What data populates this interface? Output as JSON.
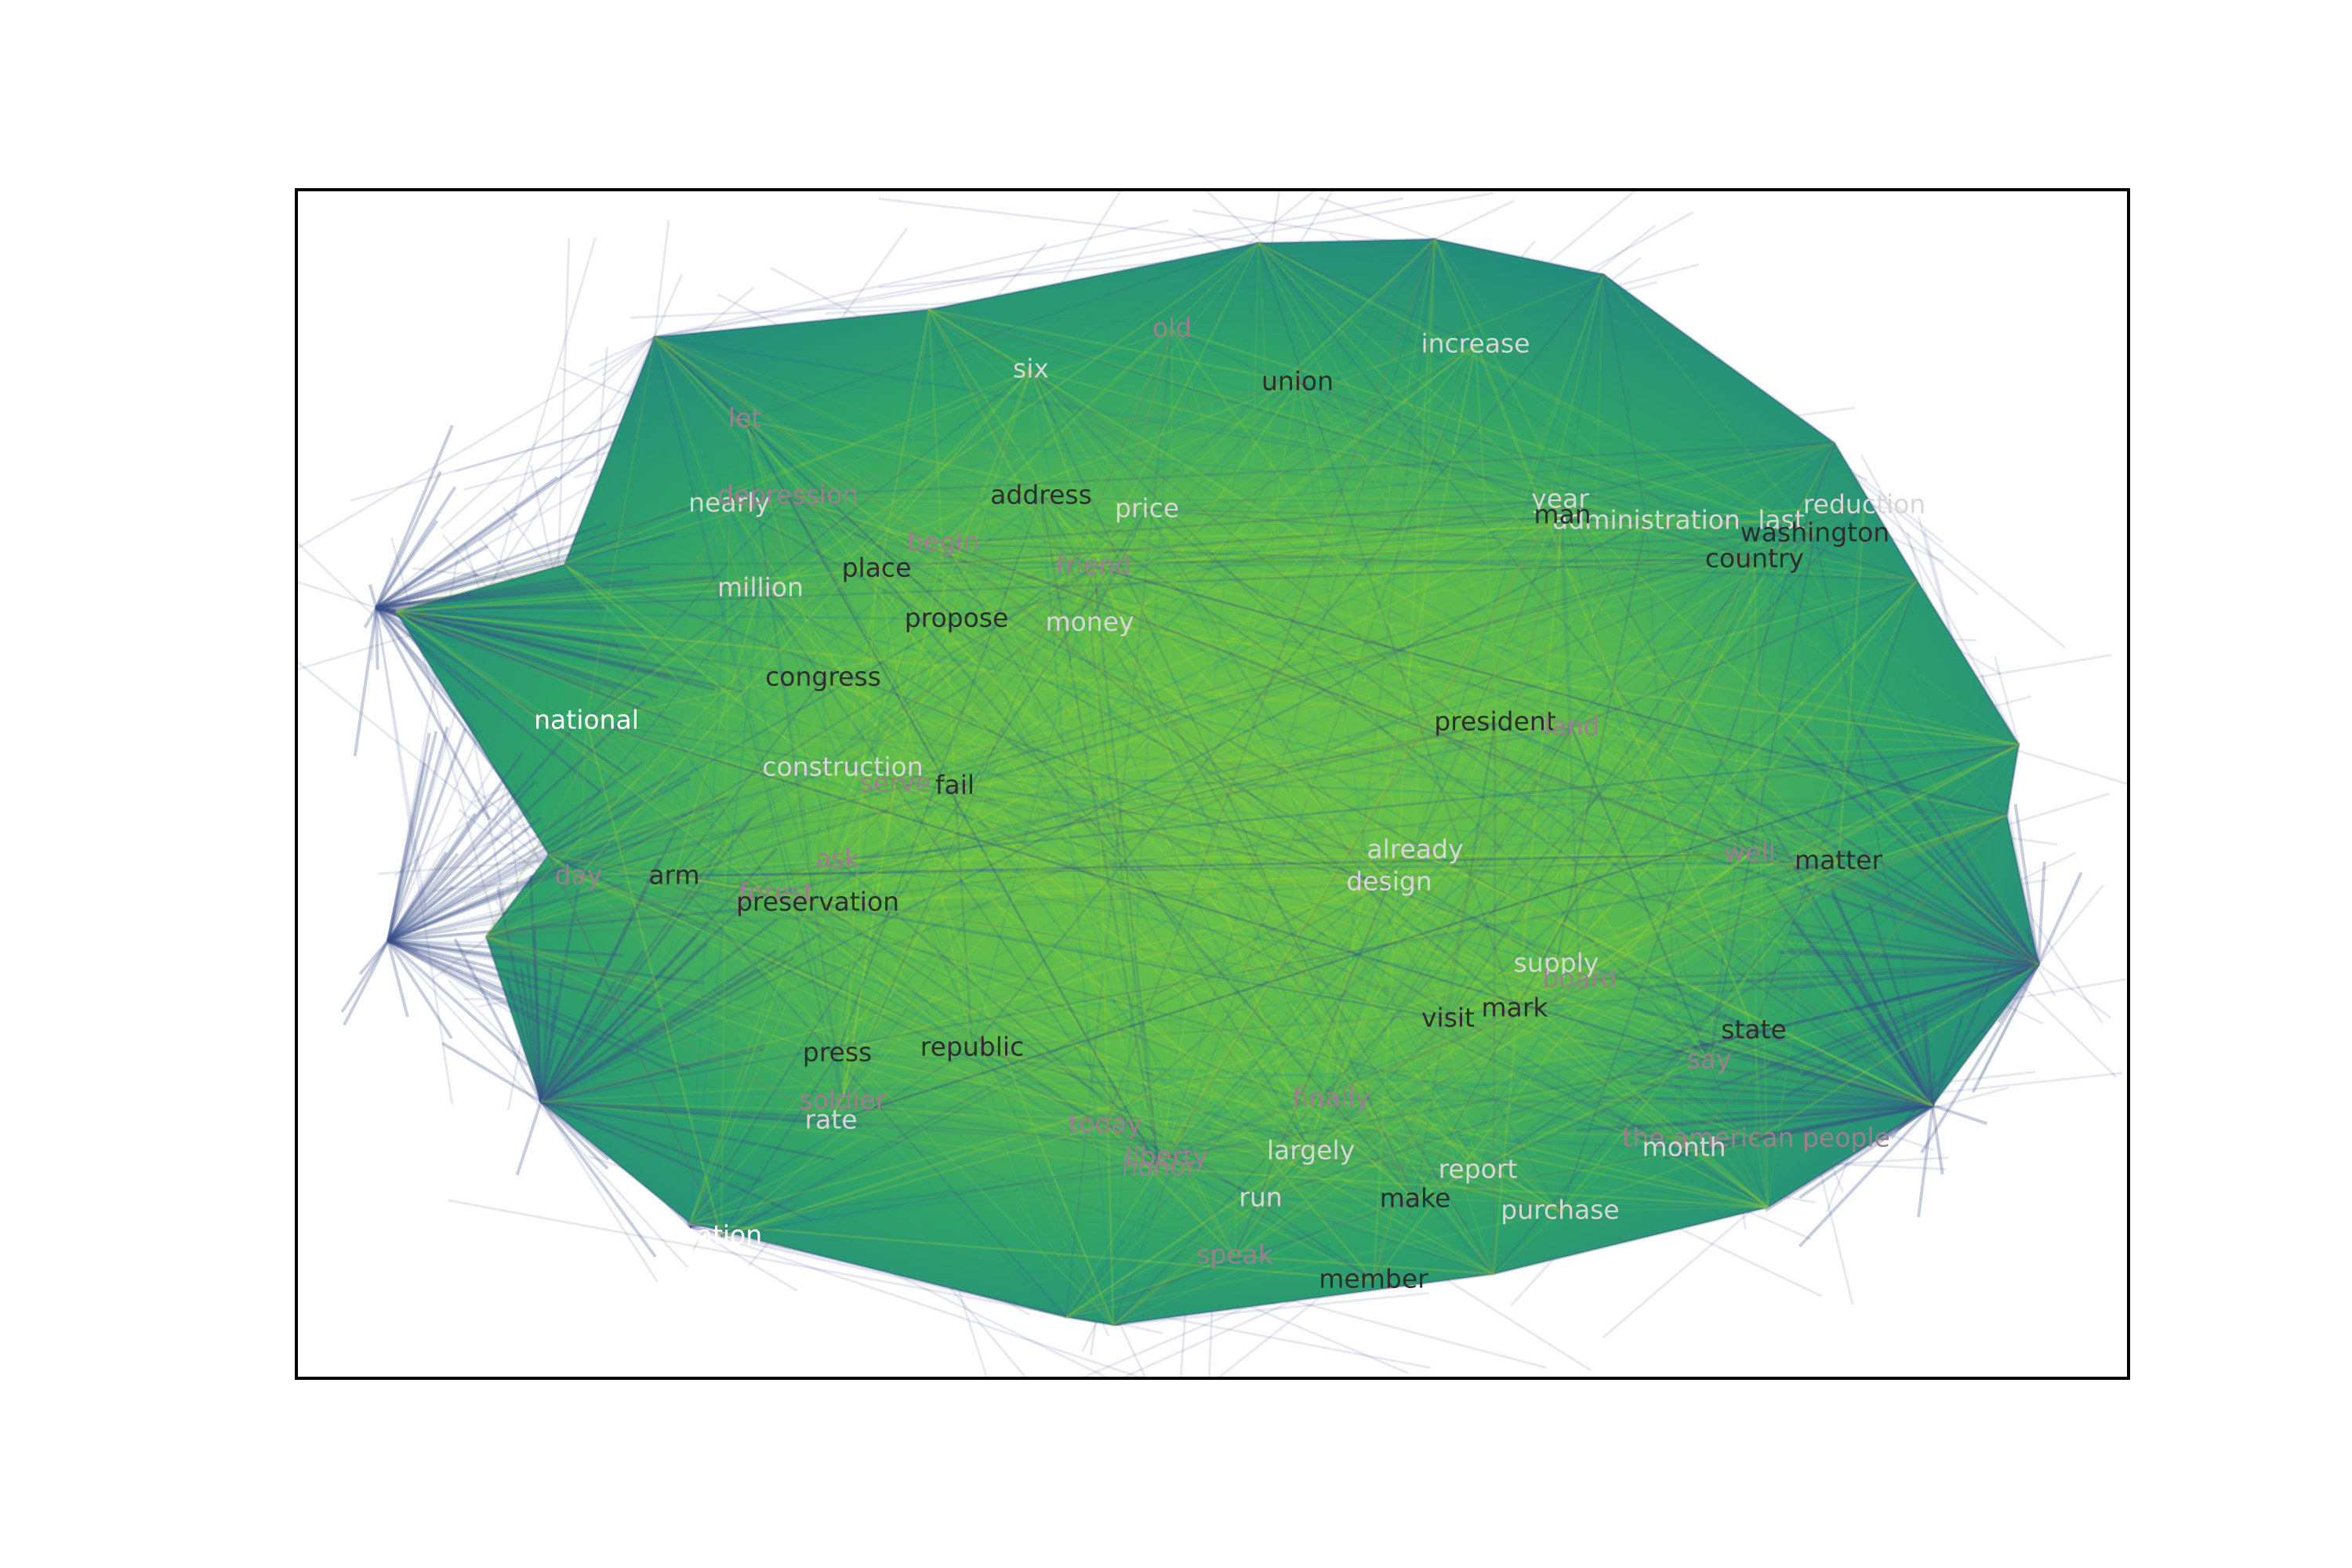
{
  "graph": {
    "hull_color_outer": "#3b4e8a",
    "hull_color_mid": "#21908c",
    "hull_color_inner": "#7ac943",
    "hull_color_bright": "#a6d82e",
    "nodes": [
      {
        "id": "old",
        "label": "old",
        "tone": "muted"
      },
      {
        "id": "six",
        "label": "six",
        "tone": "light"
      },
      {
        "id": "increase",
        "label": "increase",
        "tone": "light"
      },
      {
        "id": "union",
        "label": "union",
        "tone": "dark"
      },
      {
        "id": "let",
        "label": "let",
        "tone": "muted"
      },
      {
        "id": "nearly",
        "label": "nearly",
        "tone": "light"
      },
      {
        "id": "depression",
        "label": "depression",
        "tone": "muted"
      },
      {
        "id": "address",
        "label": "address",
        "tone": "dark"
      },
      {
        "id": "price",
        "label": "price",
        "tone": "light"
      },
      {
        "id": "year",
        "label": "year",
        "tone": "light"
      },
      {
        "id": "reduction",
        "label": "reduction",
        "tone": "light"
      },
      {
        "id": "administration",
        "label": "administration",
        "tone": "light"
      },
      {
        "id": "last",
        "label": "last",
        "tone": "light"
      },
      {
        "id": "man",
        "label": "man",
        "tone": "dark"
      },
      {
        "id": "washington",
        "label": "washington",
        "tone": "dark"
      },
      {
        "id": "begin",
        "label": "begin",
        "tone": "muted"
      },
      {
        "id": "place",
        "label": "place",
        "tone": "dark"
      },
      {
        "id": "friend",
        "label": "friend",
        "tone": "muted"
      },
      {
        "id": "country",
        "label": "country",
        "tone": "dark"
      },
      {
        "id": "million",
        "label": "million",
        "tone": "light"
      },
      {
        "id": "propose",
        "label": "propose",
        "tone": "dark"
      },
      {
        "id": "money",
        "label": "money",
        "tone": "light"
      },
      {
        "id": "congress",
        "label": "congress",
        "tone": "dark"
      },
      {
        "id": "national",
        "label": "national",
        "tone": "white"
      },
      {
        "id": "president",
        "label": "president",
        "tone": "dark"
      },
      {
        "id": "land",
        "label": "land",
        "tone": "muted"
      },
      {
        "id": "construction",
        "label": "construction",
        "tone": "light"
      },
      {
        "id": "serve",
        "label": "serve",
        "tone": "muted"
      },
      {
        "id": "fail",
        "label": "fail",
        "tone": "dark"
      },
      {
        "id": "already",
        "label": "already",
        "tone": "light"
      },
      {
        "id": "design",
        "label": "design",
        "tone": "light"
      },
      {
        "id": "well",
        "label": "well",
        "tone": "muted"
      },
      {
        "id": "matter",
        "label": "matter",
        "tone": "dark"
      },
      {
        "id": "day",
        "label": "day",
        "tone": "muted"
      },
      {
        "id": "arm",
        "label": "arm",
        "tone": "dark"
      },
      {
        "id": "ask",
        "label": "ask",
        "tone": "muted"
      },
      {
        "id": "forest",
        "label": "forest",
        "tone": "muted"
      },
      {
        "id": "preservation",
        "label": "preservation",
        "tone": "dark"
      },
      {
        "id": "supply",
        "label": "supply",
        "tone": "light"
      },
      {
        "id": "board",
        "label": "board",
        "tone": "muted"
      },
      {
        "id": "visit",
        "label": "visit",
        "tone": "dark"
      },
      {
        "id": "mark",
        "label": "mark",
        "tone": "dark"
      },
      {
        "id": "state",
        "label": "state",
        "tone": "dark"
      },
      {
        "id": "press",
        "label": "press",
        "tone": "dark"
      },
      {
        "id": "republic",
        "label": "republic",
        "tone": "dark"
      },
      {
        "id": "say",
        "label": "say",
        "tone": "muted"
      },
      {
        "id": "finally",
        "label": "finally",
        "tone": "muted"
      },
      {
        "id": "soldier",
        "label": "soldier",
        "tone": "muted"
      },
      {
        "id": "rate",
        "label": "rate",
        "tone": "light"
      },
      {
        "id": "today",
        "label": "today",
        "tone": "muted"
      },
      {
        "id": "the_american_people",
        "label": "the american people",
        "tone": "muted"
      },
      {
        "id": "liberty",
        "label": "liberty",
        "tone": "muted"
      },
      {
        "id": "largely",
        "label": "largely",
        "tone": "light"
      },
      {
        "id": "month",
        "label": "month",
        "tone": "light"
      },
      {
        "id": "report",
        "label": "report",
        "tone": "light"
      },
      {
        "id": "honor",
        "label": "honor",
        "tone": "muted"
      },
      {
        "id": "run",
        "label": "run",
        "tone": "light"
      },
      {
        "id": "make",
        "label": "make",
        "tone": "dark"
      },
      {
        "id": "purchase",
        "label": "purchase",
        "tone": "light"
      },
      {
        "id": "nation",
        "label": "nation",
        "tone": "white"
      },
      {
        "id": "speak",
        "label": "speak",
        "tone": "muted"
      },
      {
        "id": "member",
        "label": "member",
        "tone": "dark"
      }
    ]
  }
}
